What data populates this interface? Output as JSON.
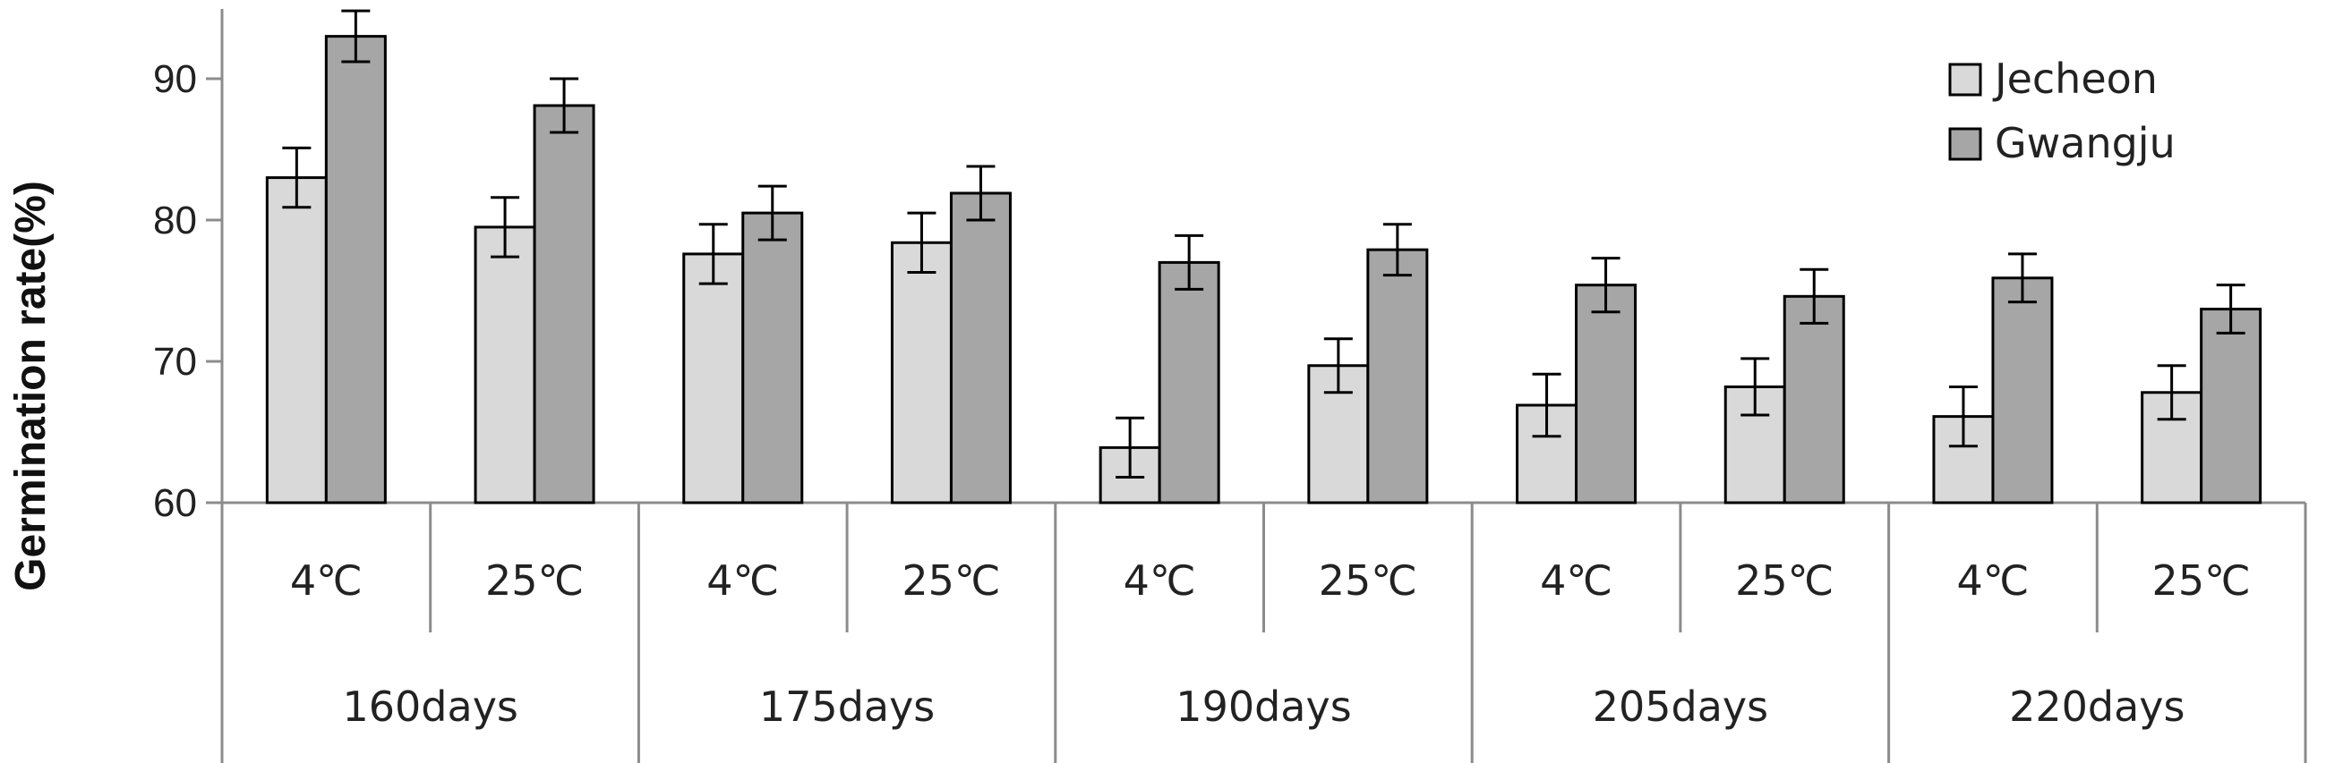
{
  "chart_data": {
    "type": "bar",
    "title": "",
    "xlabel": "",
    "ylabel": "Germination rate(%)",
    "ylim": [
      60,
      95
    ],
    "yticks": [
      60,
      70,
      80,
      90
    ],
    "grid": false,
    "legend_position": "top-right",
    "groups": [
      "160days",
      "175days",
      "190days",
      "205days",
      "220days"
    ],
    "categories": [
      "4℃",
      "25℃",
      "4℃",
      "25℃",
      "4℃",
      "25℃",
      "4℃",
      "25℃",
      "4℃",
      "25℃"
    ],
    "series": [
      {
        "name": "Jecheon",
        "color": "#d9d9d9",
        "values": [
          83.0,
          79.5,
          77.6,
          78.4,
          63.9,
          69.7,
          66.9,
          68.2,
          66.1,
          67.8
        ],
        "errors": [
          2.1,
          2.1,
          2.1,
          2.1,
          2.1,
          1.9,
          2.2,
          2.0,
          2.1,
          1.9
        ]
      },
      {
        "name": "Gwangju",
        "color": "#a6a6a6",
        "values": [
          93.0,
          88.1,
          80.5,
          81.9,
          77.0,
          77.9,
          75.4,
          74.6,
          75.9,
          73.7
        ],
        "errors": [
          1.8,
          1.9,
          1.9,
          1.9,
          1.9,
          1.8,
          1.9,
          1.9,
          1.7,
          1.7
        ]
      }
    ]
  }
}
